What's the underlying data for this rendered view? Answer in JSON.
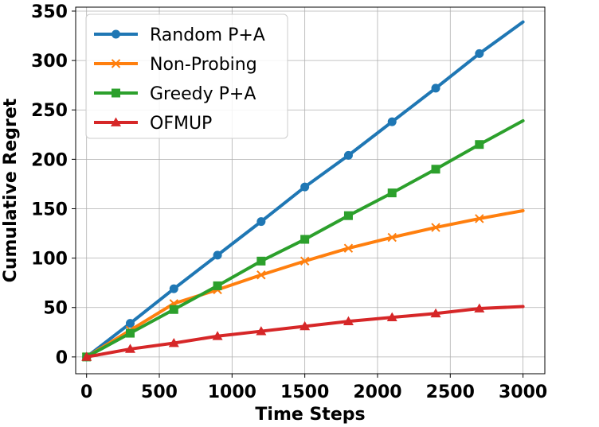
{
  "chart_data": {
    "type": "line",
    "title": "",
    "xlabel": "Time Steps",
    "ylabel": "Cumulative Regret",
    "xlim": [
      -75,
      3150
    ],
    "ylim": [
      -17,
      354
    ],
    "xticks": [
      0,
      500,
      1000,
      1500,
      2000,
      2500,
      3000
    ],
    "yticks": [
      0,
      50,
      100,
      150,
      200,
      250,
      300,
      350
    ],
    "xtick_labels": [
      "0",
      "500",
      "1000",
      "1500",
      "2000",
      "2500",
      "3000"
    ],
    "ytick_labels": [
      "0",
      "50",
      "100",
      "150",
      "200",
      "250",
      "300",
      "350"
    ],
    "grid": true,
    "legend_position": "top-left",
    "marker_x": [
      0,
      300,
      600,
      900,
      1200,
      1500,
      1800,
      2100,
      2400,
      2700
    ],
    "series": [
      {
        "name": "Random P+A",
        "color": "#1f77b4",
        "marker": "circle",
        "x": [
          0,
          300,
          600,
          900,
          1200,
          1500,
          1800,
          2100,
          2400,
          2700,
          3000
        ],
        "values": [
          0,
          34,
          69,
          103,
          137,
          172,
          204,
          238,
          272,
          307,
          339
        ]
      },
      {
        "name": "Non-Probing",
        "color": "#ff7f0e",
        "marker": "x",
        "x": [
          0,
          300,
          600,
          900,
          1200,
          1500,
          1800,
          2100,
          2400,
          2700,
          3000
        ],
        "values": [
          0,
          27,
          54,
          68,
          83,
          97,
          110,
          121,
          131,
          140,
          148
        ]
      },
      {
        "name": "Greedy P+A",
        "color": "#2ca02c",
        "marker": "square",
        "x": [
          0,
          300,
          600,
          900,
          1200,
          1500,
          1800,
          2100,
          2400,
          2700,
          3000
        ],
        "values": [
          0,
          24,
          48,
          72,
          97,
          119,
          143,
          166,
          190,
          215,
          239
        ]
      },
      {
        "name": "OFMUP",
        "color": "#d62728",
        "marker": "triangle",
        "x": [
          0,
          300,
          600,
          900,
          1200,
          1500,
          1800,
          2100,
          2400,
          2700,
          3000
        ],
        "values": [
          0,
          8,
          14,
          21,
          26,
          31,
          36,
          40,
          44,
          49,
          51
        ]
      }
    ]
  }
}
